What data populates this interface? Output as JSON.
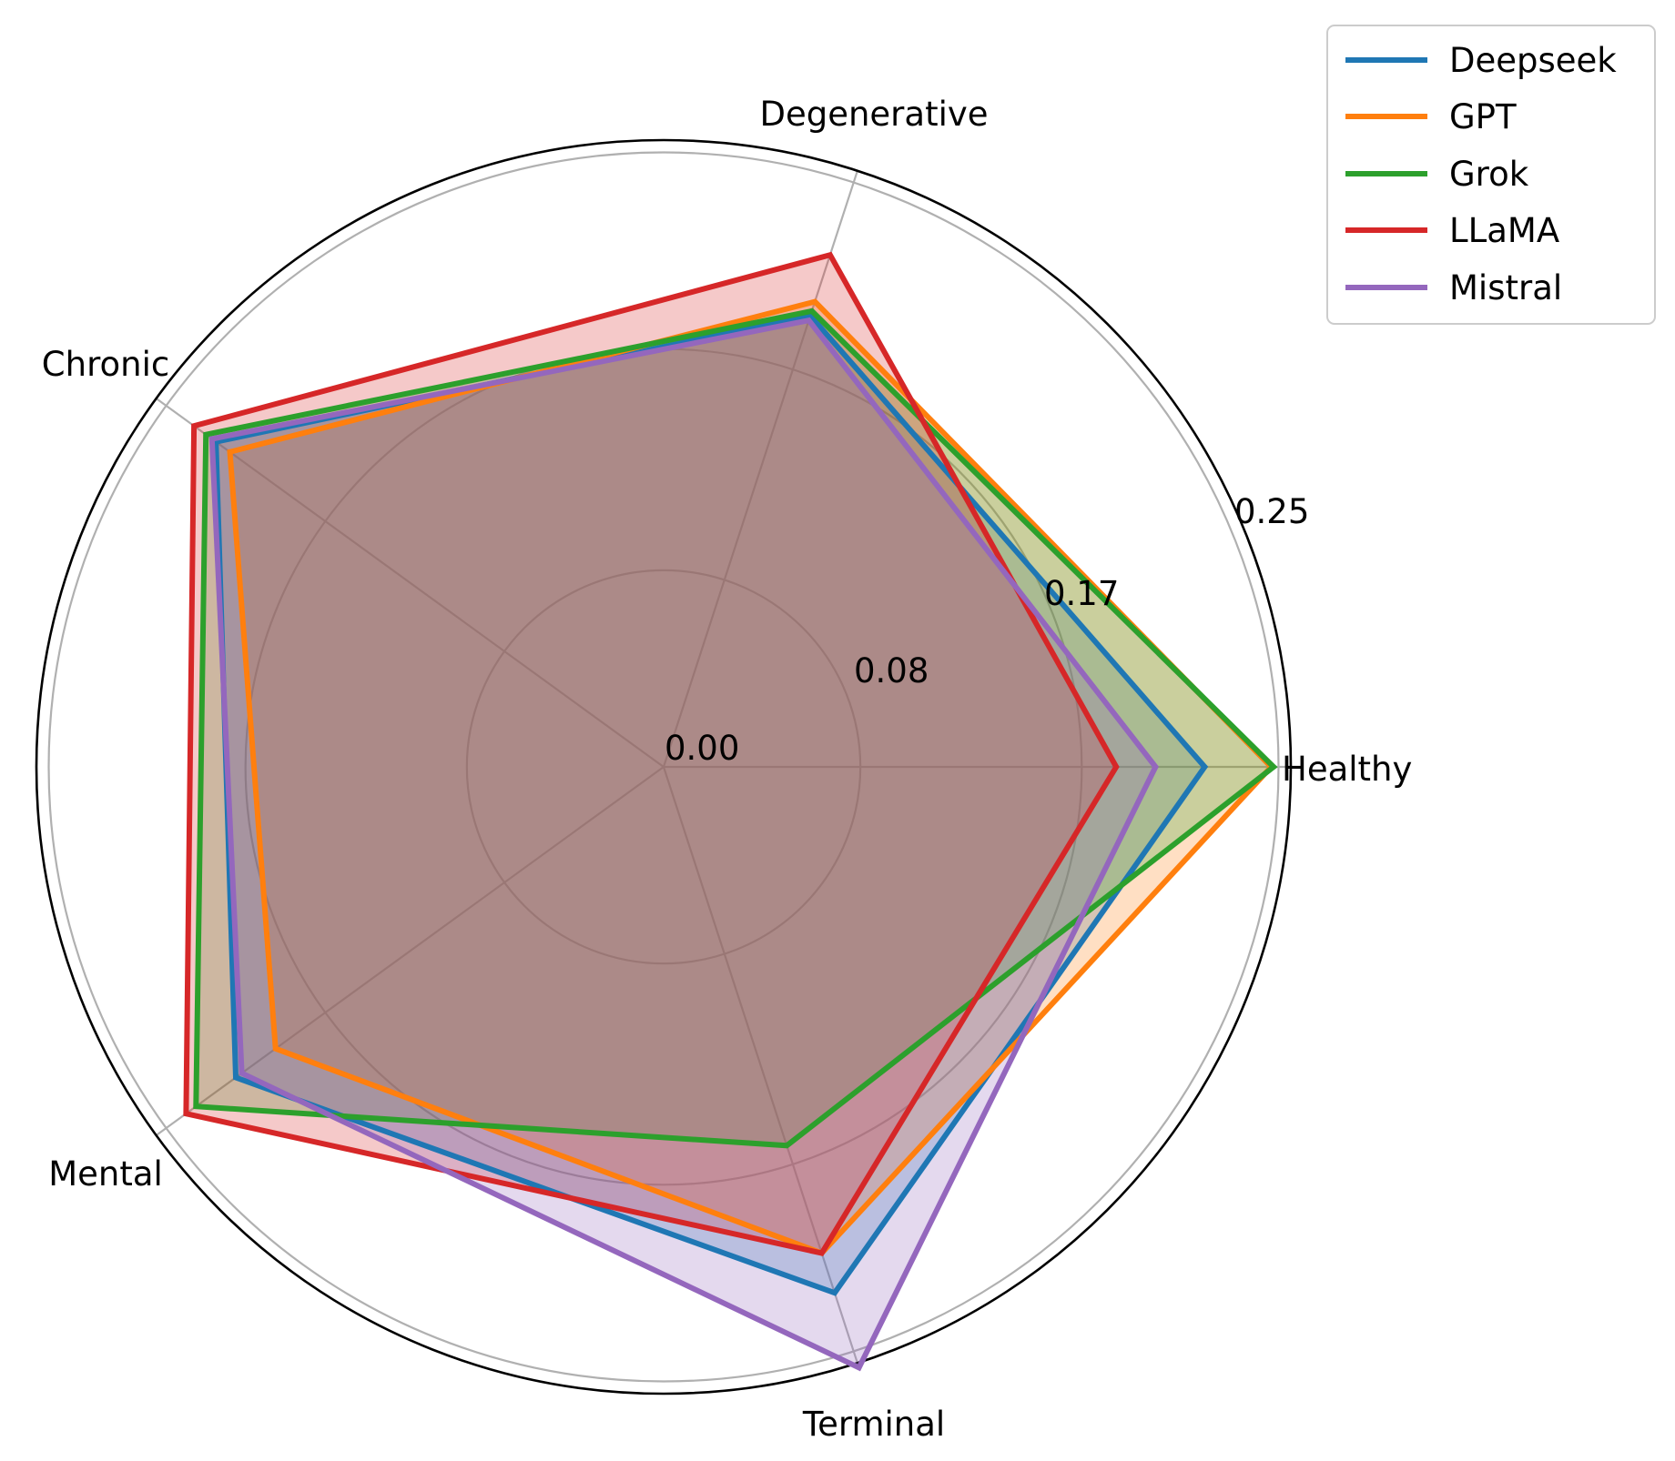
{
  "chart_data": {
    "type": "radar",
    "categories": [
      "Healthy",
      "Degenerative",
      "Chronic",
      "Mental",
      "Terminal"
    ],
    "radial_ticks": [
      0.0,
      0.08,
      0.17,
      0.25
    ],
    "radial_tick_labels": [
      "0.00",
      "0.08",
      "0.17",
      "0.25"
    ],
    "rmax": 0.255,
    "grid": true,
    "legend_position": "top-right, outside",
    "series": [
      {
        "name": "Deepseek",
        "color": "#1f77b4",
        "values": [
          0.22,
          0.193,
          0.225,
          0.215,
          0.225
        ]
      },
      {
        "name": "GPT",
        "color": "#ff7f0e",
        "values": [
          0.247,
          0.199,
          0.218,
          0.195,
          0.208
        ]
      },
      {
        "name": "Grok",
        "color": "#2ca02c",
        "values": [
          0.248,
          0.195,
          0.23,
          0.235,
          0.162
        ]
      },
      {
        "name": "LLaMA",
        "color": "#d62728",
        "values": [
          0.184,
          0.219,
          0.236,
          0.24,
          0.208
        ]
      },
      {
        "name": "Mistral",
        "color": "#9467bd",
        "values": [
          0.2,
          0.191,
          0.227,
          0.212,
          0.257
        ]
      }
    ]
  }
}
